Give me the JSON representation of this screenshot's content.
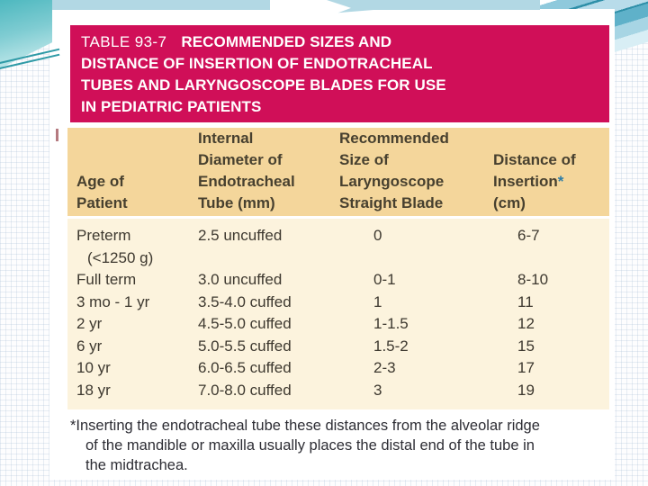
{
  "slide": {
    "banner": {
      "table_label": "TABLE 93-7",
      "title_line1": "RECOMMENDED SIZES AND",
      "title_line2": "DISTANCE OF INSERTION OF ENDOTRACHEAL",
      "title_line3": "TUBES AND LARYNGOSCOPE BLADES FOR USE",
      "title_line4": "IN PEDIATRIC PATIENTS"
    },
    "table": {
      "header": [
        {
          "lines": [
            "Age of",
            "Patient"
          ]
        },
        {
          "lines": [
            "Internal",
            "Diameter of",
            "Endotracheal",
            "Tube (mm)"
          ]
        },
        {
          "lines": [
            "Recommended",
            "Size of",
            "Laryngoscope",
            "Straight Blade"
          ]
        },
        {
          "lines": [
            "Distance of",
            "Insertion",
            "(cm)"
          ],
          "asterisk": "*"
        }
      ],
      "rows": [
        {
          "age": "Preterm",
          "age_note": "(<1250 g)",
          "tube": "2.5 uncuffed",
          "blade": "0",
          "distance": "6-7"
        },
        {
          "age": "Full term",
          "tube": "3.0 uncuffed",
          "blade": "0-1",
          "distance": "8-10"
        },
        {
          "age": "3 mo - 1 yr",
          "tube": "3.5-4.0 cuffed",
          "blade": "1",
          "distance": "11"
        },
        {
          "age": "2 yr",
          "tube": "4.5-5.0 cuffed",
          "blade": "1-1.5",
          "distance": "12"
        },
        {
          "age": "6 yr",
          "tube": "5.0-5.5 cuffed",
          "blade": "1.5-2",
          "distance": "15"
        },
        {
          "age": "10 yr",
          "tube": "6.0-6.5 cuffed",
          "blade": "2-3",
          "distance": "17"
        },
        {
          "age": "18 yr",
          "tube": "7.0-8.0 cuffed",
          "blade": "3",
          "distance": "19"
        }
      ],
      "footnote": [
        "*Inserting the endotracheal tube these distances from the alveolar ridge",
        "of the mandible or maxilla usually places the distal end of the tube in",
        "the midtrachea."
      ]
    },
    "colors": {
      "banner_pink": "#d00f58",
      "header_bg": "#f4d69b",
      "body_bg": "#fcf3dd",
      "asterisk_blue": "#2b7ca6",
      "accent_teal": "#2e9aa6",
      "band_blue": "#b2d8e4"
    }
  }
}
